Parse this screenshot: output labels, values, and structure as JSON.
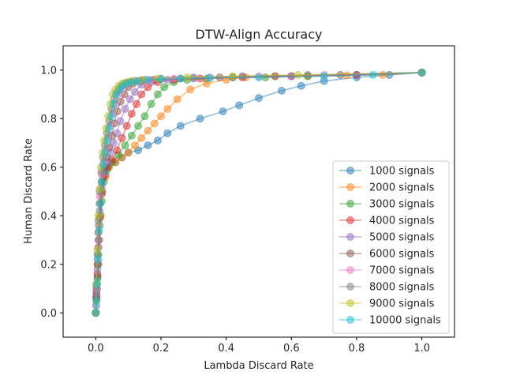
{
  "chart_data": {
    "type": "line",
    "title": "DTW-Align Accuracy",
    "xlabel": "Lambda Discard Rate",
    "ylabel": "Human Discard Rate",
    "xlim": [
      -0.1,
      1.1
    ],
    "ylim": [
      -0.1,
      1.1
    ],
    "xticks": [
      "0.0",
      "0.2",
      "0.4",
      "0.6",
      "0.8",
      "1.0"
    ],
    "yticks": [
      "0.0",
      "0.2",
      "0.4",
      "0.6",
      "0.8",
      "1.0"
    ],
    "grid": false,
    "legend_position": "lower-right",
    "markers": "circle",
    "series": [
      {
        "name": "1000 signals",
        "color": "#1f77b4",
        "x": [
          0.0,
          0.001,
          0.002,
          0.004,
          0.006,
          0.008,
          0.01,
          0.015,
          0.02,
          0.03,
          0.04,
          0.06,
          0.08,
          0.1,
          0.13,
          0.16,
          0.19,
          0.22,
          0.26,
          0.32,
          0.39,
          0.44,
          0.5,
          0.57,
          0.63,
          0.7,
          0.8,
          0.9,
          1.0
        ],
        "y": [
          0.0,
          0.03,
          0.06,
          0.1,
          0.15,
          0.2,
          0.3,
          0.4,
          0.5,
          0.57,
          0.6,
          0.62,
          0.64,
          0.66,
          0.67,
          0.69,
          0.71,
          0.74,
          0.77,
          0.8,
          0.83,
          0.855,
          0.885,
          0.915,
          0.935,
          0.955,
          0.97,
          0.98,
          0.99
        ]
      },
      {
        "name": "2000 signals",
        "color": "#ff7f0e",
        "x": [
          0.0,
          0.002,
          0.004,
          0.007,
          0.01,
          0.015,
          0.02,
          0.03,
          0.04,
          0.06,
          0.08,
          0.1,
          0.12,
          0.14,
          0.16,
          0.18,
          0.2,
          0.22,
          0.25,
          0.29,
          0.34,
          0.4,
          0.46,
          0.55,
          0.65,
          0.77,
          0.88,
          1.0
        ],
        "y": [
          0.0,
          0.05,
          0.12,
          0.2,
          0.3,
          0.4,
          0.5,
          0.56,
          0.6,
          0.62,
          0.64,
          0.66,
          0.69,
          0.72,
          0.75,
          0.78,
          0.81,
          0.84,
          0.88,
          0.92,
          0.945,
          0.96,
          0.97,
          0.975,
          0.975,
          0.978,
          0.98,
          0.99
        ]
      },
      {
        "name": "3000 signals",
        "color": "#2ca02c",
        "x": [
          0.0,
          0.002,
          0.005,
          0.008,
          0.012,
          0.018,
          0.025,
          0.035,
          0.05,
          0.07,
          0.09,
          0.11,
          0.13,
          0.15,
          0.17,
          0.19,
          0.21,
          0.24,
          0.28,
          0.34,
          0.42,
          0.52,
          0.65,
          0.8,
          1.0
        ],
        "y": [
          0.0,
          0.06,
          0.14,
          0.24,
          0.36,
          0.46,
          0.54,
          0.59,
          0.62,
          0.65,
          0.69,
          0.73,
          0.77,
          0.81,
          0.86,
          0.9,
          0.93,
          0.95,
          0.96,
          0.965,
          0.97,
          0.97,
          0.975,
          0.98,
          0.99
        ]
      },
      {
        "name": "4000 signals",
        "color": "#d62728",
        "x": [
          0.0,
          0.002,
          0.005,
          0.008,
          0.012,
          0.018,
          0.025,
          0.035,
          0.05,
          0.065,
          0.08,
          0.095,
          0.11,
          0.125,
          0.14,
          0.16,
          0.19,
          0.24,
          0.32,
          0.45,
          0.6,
          0.8,
          1.0
        ],
        "y": [
          0.0,
          0.07,
          0.16,
          0.27,
          0.39,
          0.49,
          0.56,
          0.6,
          0.63,
          0.67,
          0.72,
          0.77,
          0.82,
          0.86,
          0.9,
          0.93,
          0.95,
          0.96,
          0.965,
          0.97,
          0.975,
          0.98,
          0.99
        ]
      },
      {
        "name": "5000 signals",
        "color": "#9467bd",
        "x": [
          0.0,
          0.002,
          0.005,
          0.008,
          0.012,
          0.018,
          0.025,
          0.035,
          0.045,
          0.055,
          0.065,
          0.075,
          0.09,
          0.105,
          0.12,
          0.14,
          0.17,
          0.22,
          0.3,
          0.42,
          0.6,
          0.8,
          1.0
        ],
        "y": [
          0.0,
          0.08,
          0.18,
          0.3,
          0.42,
          0.52,
          0.58,
          0.62,
          0.66,
          0.7,
          0.74,
          0.79,
          0.84,
          0.88,
          0.91,
          0.94,
          0.955,
          0.96,
          0.965,
          0.97,
          0.975,
          0.98,
          0.99
        ]
      },
      {
        "name": "6000 signals",
        "color": "#8c564b",
        "x": [
          0.0,
          0.002,
          0.005,
          0.008,
          0.012,
          0.018,
          0.025,
          0.033,
          0.041,
          0.049,
          0.057,
          0.066,
          0.076,
          0.088,
          0.1,
          0.115,
          0.14,
          0.18,
          0.26,
          0.38,
          0.55,
          0.75,
          1.0
        ],
        "y": [
          0.0,
          0.09,
          0.2,
          0.33,
          0.45,
          0.54,
          0.6,
          0.64,
          0.68,
          0.73,
          0.78,
          0.83,
          0.87,
          0.9,
          0.93,
          0.945,
          0.955,
          0.96,
          0.965,
          0.97,
          0.975,
          0.98,
          0.99
        ]
      },
      {
        "name": "7000 signals",
        "color": "#e377c2",
        "x": [
          0.0,
          0.002,
          0.005,
          0.008,
          0.012,
          0.018,
          0.024,
          0.03,
          0.037,
          0.044,
          0.052,
          0.06,
          0.07,
          0.082,
          0.095,
          0.11,
          0.13,
          0.17,
          0.24,
          0.35,
          0.5,
          0.7,
          1.0
        ],
        "y": [
          0.0,
          0.1,
          0.22,
          0.36,
          0.48,
          0.57,
          0.62,
          0.67,
          0.72,
          0.77,
          0.82,
          0.86,
          0.9,
          0.925,
          0.94,
          0.95,
          0.955,
          0.96,
          0.965,
          0.97,
          0.975,
          0.98,
          0.99
        ]
      },
      {
        "name": "8000 signals",
        "color": "#7f7f7f",
        "x": [
          0.0,
          0.002,
          0.005,
          0.008,
          0.012,
          0.017,
          0.022,
          0.028,
          0.034,
          0.041,
          0.048,
          0.056,
          0.065,
          0.075,
          0.088,
          0.1,
          0.12,
          0.15,
          0.2,
          0.3,
          0.45,
          0.65,
          1.0
        ],
        "y": [
          0.0,
          0.11,
          0.24,
          0.38,
          0.5,
          0.58,
          0.64,
          0.69,
          0.74,
          0.79,
          0.84,
          0.88,
          0.91,
          0.93,
          0.945,
          0.95,
          0.955,
          0.96,
          0.965,
          0.97,
          0.975,
          0.98,
          0.99
        ]
      },
      {
        "name": "9000 signals",
        "color": "#bcbd22",
        "x": [
          0.0,
          0.002,
          0.005,
          0.008,
          0.012,
          0.016,
          0.021,
          0.026,
          0.032,
          0.038,
          0.045,
          0.052,
          0.06,
          0.07,
          0.082,
          0.095,
          0.11,
          0.14,
          0.19,
          0.28,
          0.42,
          0.62,
          1.0
        ],
        "y": [
          0.0,
          0.12,
          0.26,
          0.4,
          0.51,
          0.6,
          0.66,
          0.71,
          0.76,
          0.81,
          0.86,
          0.9,
          0.92,
          0.935,
          0.945,
          0.95,
          0.955,
          0.96,
          0.965,
          0.97,
          0.975,
          0.98,
          0.99
        ]
      },
      {
        "name": "10000 signals",
        "color": "#17becf",
        "x": [
          0.0,
          0.002,
          0.004,
          0.007,
          0.01,
          0.014,
          0.018,
          0.023,
          0.028,
          0.034,
          0.04,
          0.047,
          0.054,
          0.062,
          0.072,
          0.082,
          0.095,
          0.11,
          0.13,
          0.16,
          0.2,
          0.26,
          0.35,
          0.5,
          0.7,
          0.85,
          1.0
        ],
        "y": [
          0.0,
          0.05,
          0.12,
          0.22,
          0.34,
          0.45,
          0.54,
          0.61,
          0.66,
          0.71,
          0.76,
          0.81,
          0.86,
          0.9,
          0.92,
          0.935,
          0.945,
          0.95,
          0.955,
          0.96,
          0.962,
          0.965,
          0.968,
          0.97,
          0.975,
          0.98,
          0.99
        ]
      }
    ]
  }
}
